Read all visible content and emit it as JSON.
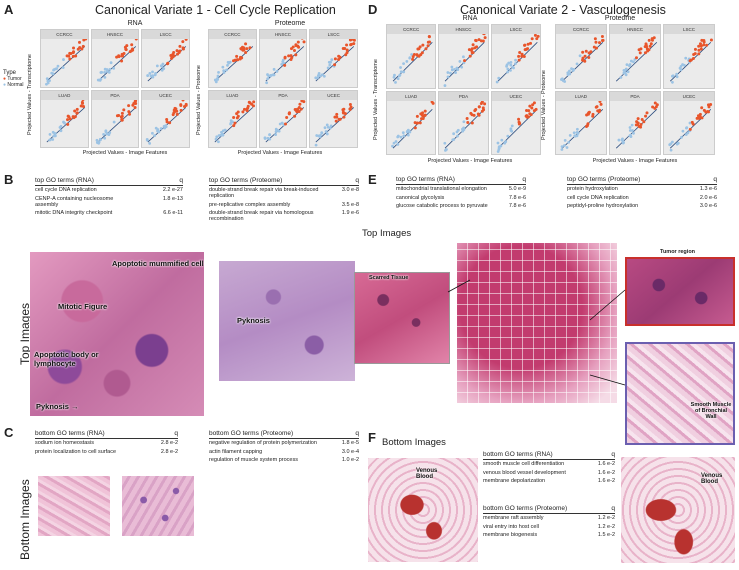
{
  "panels": {
    "A": {
      "label": "A",
      "title": "Canonical Variate 1 - Cell Cycle Replication",
      "rna": {
        "title": "RNA",
        "ylabel": "Projected Values - Transcriptome",
        "xlabel": "Projected Values - Image Features"
      },
      "prot": {
        "title": "Proteome",
        "ylabel": "Projected Values - Proteome",
        "xlabel": "Projected Values - Image Features"
      },
      "legend": {
        "title": "Type",
        "items": [
          "Tumor",
          "Normal"
        ]
      }
    },
    "D": {
      "label": "D",
      "title": "Canonical Variate 2 - Vasculogenesis",
      "rna": {
        "title": "RNA",
        "ylabel": "Projected Values - Transcriptome",
        "xlabel": "Projected Values - Image Features"
      },
      "prot": {
        "title": "Proteome",
        "ylabel": "Projected Values - Proteome",
        "xlabel": "Projected Values - Image Features"
      }
    },
    "B": {
      "label": "B",
      "rna": {
        "header": "top GO terms (RNA)",
        "q": "q",
        "rows": [
          [
            "cell cycle DNA replication",
            "2.2 e-27"
          ],
          [
            "CENP-A containing nucleosome assembly",
            "1.8 e-13"
          ],
          [
            "mitotic DNA integrity checkpoint",
            "6.6 e-11"
          ]
        ]
      },
      "prot": {
        "header": "top GO terms (Proteome)",
        "q": "q",
        "rows": [
          [
            "double-strand break repair via break-induced replication",
            "3.0 e-8"
          ],
          [
            "pre-replicative complex assembly",
            "3.5 e-8"
          ],
          [
            "double-strand break repair via homologous recombination",
            "1.9 e-6"
          ]
        ]
      },
      "vlabel": "Top Images",
      "annos": [
        "Apoptotic mummified cell",
        "Mitotic Figure",
        "Apoptotic body or lymphocyte",
        "Pyknosis →",
        "Pyknosis"
      ]
    },
    "C": {
      "label": "C",
      "rna": {
        "header": "bottom GO terms (RNA)",
        "q": "q",
        "rows": [
          [
            "sodium ion homeostasis",
            "2.8 e-2"
          ],
          [
            "protein localization to cell surface",
            "2.8 e-2"
          ]
        ]
      },
      "prot": {
        "header": "bottom GO terms (Proteome)",
        "q": "q",
        "rows": [
          [
            "negative regulation of protein polymerization",
            "1.8 e-5"
          ],
          [
            "actin filament capping",
            "3.0 e-4"
          ],
          [
            "regulation of muscle system process",
            "1.0 e-2"
          ]
        ]
      },
      "vlabel": "Bottom Images"
    },
    "E": {
      "label": "E",
      "rna": {
        "header": "top GO terms (RNA)",
        "q": "q",
        "rows": [
          [
            "mitochondrial translational elongation",
            "5.0 e-9"
          ],
          [
            "canonical glycolysis",
            "7.8 e-6"
          ],
          [
            "glucose catabolic process to pyruvate",
            "7.8 e-6"
          ]
        ]
      },
      "prot": {
        "header": "top GO terms (Proteome)",
        "q": "q",
        "rows": [
          [
            "protein hydroxylation",
            "1.3 e-6"
          ],
          [
            "cell cycle DNA replication",
            "2.0 e-6"
          ],
          [
            "peptidyl-proline hydroxylation",
            "3.0 e-6"
          ]
        ]
      },
      "toplabel": "Top Images",
      "scarred": "Scarred Tissue",
      "tumor": "Tumor region",
      "smooth": "Smooth Muscle of Bronchial Wall"
    },
    "F": {
      "label": "F",
      "bottomlabel": "Bottom Images",
      "rna": {
        "header": "bottom GO terms (RNA)",
        "q": "q",
        "rows": [
          [
            "smooth muscle cell differentiation",
            "1.6 e-2"
          ],
          [
            "venous blood vessel development",
            "1.6 e-2"
          ],
          [
            "membrane depolarization",
            "1.6 e-2"
          ]
        ]
      },
      "prot": {
        "header": "bottom GO terms (Proteome)",
        "q": "q",
        "rows": [
          [
            "membrane raft assembly",
            "1.2 e-2"
          ],
          [
            "viral entry into host cell",
            "1.2 e-2"
          ],
          [
            "membrane biogenesis",
            "1.5 e-2"
          ]
        ]
      },
      "venous": "Venous Blood"
    }
  },
  "facets": [
    "CCRCC",
    "HNSCC",
    "LSCC",
    "LUAD",
    "PDA",
    "UCEC"
  ],
  "colors": {
    "tumor": "#e8552b",
    "normal": "#9cc3e4",
    "fit": "#2b4c7e",
    "he_pink": "#d98fb0",
    "he_purple": "#7a3f8c",
    "tumor_box": "#c9302c",
    "muscle_box": "#6b5fb0"
  }
}
